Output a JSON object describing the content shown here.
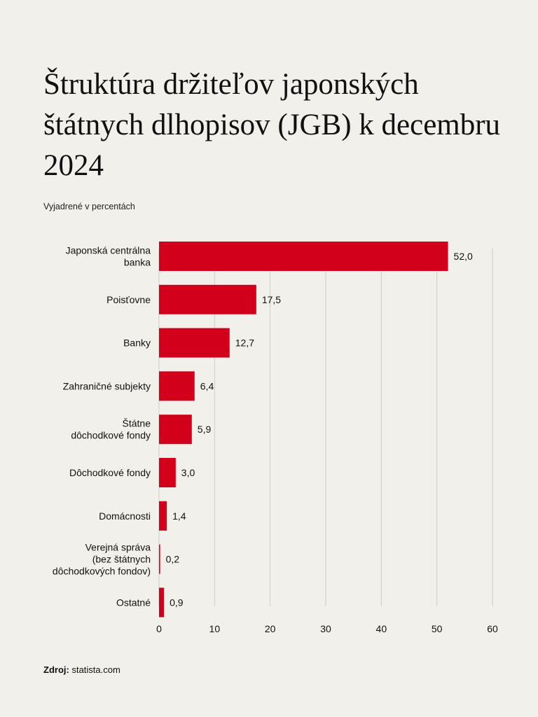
{
  "title": "Štruktúra držiteľov japonských štátnych dlhopisov (JGB) k decembru 2024",
  "subtitle": "Vyjadrené v percentách",
  "source": {
    "label": "Zdroj:",
    "value": "statista.com"
  },
  "colors": {
    "bar": "#d2001a",
    "grid": "#cfcdc8",
    "background": "#f2f0eb"
  },
  "chart_data": {
    "type": "bar",
    "orientation": "horizontal",
    "title": "Štruktúra držiteľov japonských štátnych dlhopisov (JGB) k decembru 2024",
    "subtitle": "Vyjadrené v percentách",
    "categories": [
      [
        "Japonská centrálna",
        "banka"
      ],
      [
        "Poisťovne"
      ],
      [
        "Banky"
      ],
      [
        "Zahraničné subjekty"
      ],
      [
        "Štátne",
        "dôchodkové fondy"
      ],
      [
        "Dôchodkové fondy"
      ],
      [
        "Domácnosti"
      ],
      [
        "Verejná správa",
        "(bez štátnych",
        "dôchodkových fondov)"
      ],
      [
        "Ostatné"
      ]
    ],
    "values": [
      52.0,
      17.5,
      12.7,
      6.4,
      5.9,
      3.0,
      1.4,
      0.2,
      0.9
    ],
    "value_labels": [
      "52,0",
      "17,5",
      "12,7",
      "6,4",
      "5,9",
      "3,0",
      "1,4",
      "0,2",
      "0,9"
    ],
    "xlim": [
      0,
      60
    ],
    "xticks": [
      0,
      10,
      20,
      30,
      40,
      50,
      60
    ],
    "xlabel": "",
    "ylabel": "",
    "grid": true
  }
}
